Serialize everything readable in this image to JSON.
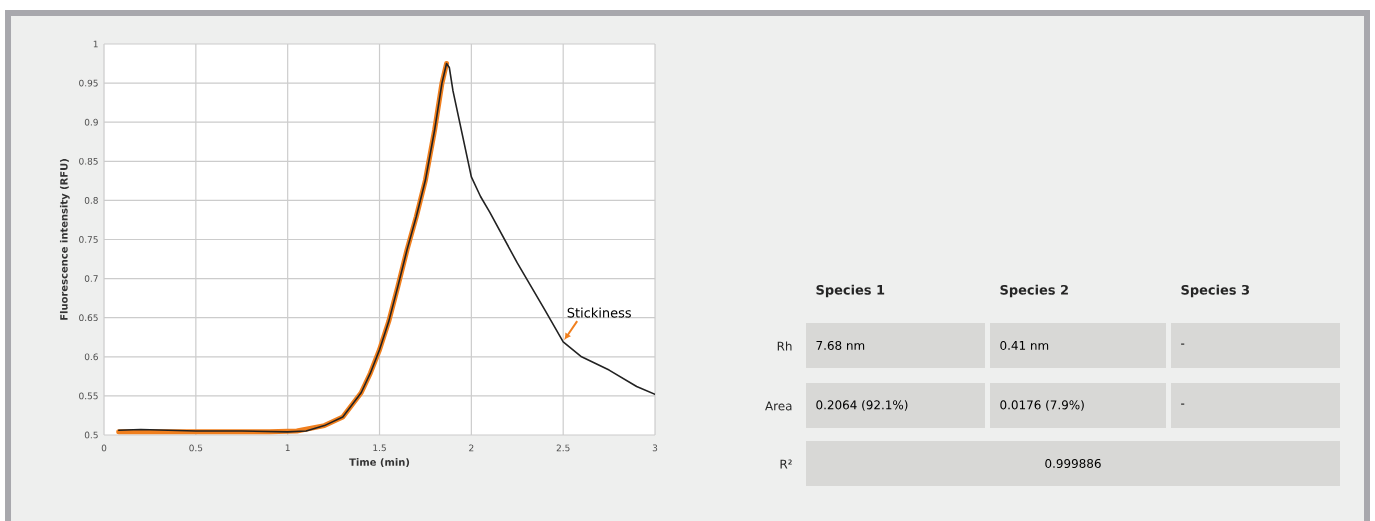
{
  "chart_data": [
    {
      "type": "line",
      "xlabel": "Time (min)",
      "ylabel": "Fluorescence intensity (RFU)",
      "xlim": [
        0,
        3
      ],
      "ylim": [
        0.5,
        1
      ],
      "xticks": [
        0,
        0.5,
        1,
        1.5,
        2,
        2.5,
        3
      ],
      "yticks": [
        0.5,
        0.55,
        0.6,
        0.65,
        0.7,
        0.75,
        0.8,
        0.85,
        0.9,
        0.95,
        1
      ],
      "grid": true,
      "marker": "none",
      "series": [
        {
          "color": "#f07f1e",
          "x": [
            0.08,
            0.3,
            0.6,
            0.9,
            1.05,
            1.2,
            1.3,
            1.4,
            1.45,
            1.5,
            1.55,
            1.6,
            1.65,
            1.7,
            1.75,
            1.8,
            1.84,
            1.865
          ],
          "values": [
            0.504,
            0.504,
            0.504,
            0.504,
            0.505,
            0.512,
            0.523,
            0.554,
            0.579,
            0.609,
            0.645,
            0.69,
            0.737,
            0.779,
            0.826,
            0.89,
            0.95,
            0.975
          ]
        },
        {
          "color": "#222222",
          "x": [
            0.08,
            0.2,
            0.35,
            0.5,
            0.75,
            1.0,
            1.1,
            1.2,
            1.3,
            1.4,
            1.45,
            1.5,
            1.55,
            1.6,
            1.65,
            1.7,
            1.75,
            1.8,
            1.84,
            1.865,
            1.88,
            1.9,
            1.95,
            2.0,
            2.05,
            2.1,
            2.25,
            2.4,
            2.5,
            2.6,
            2.75,
            2.9,
            3.0
          ],
          "values": [
            0.506,
            0.507,
            0.506,
            0.505,
            0.505,
            0.504,
            0.505,
            0.512,
            0.523,
            0.554,
            0.579,
            0.609,
            0.645,
            0.69,
            0.737,
            0.779,
            0.826,
            0.89,
            0.95,
            0.975,
            0.97,
            0.94,
            0.885,
            0.83,
            0.805,
            0.785,
            0.72,
            0.66,
            0.619,
            0.6,
            0.583,
            0.562,
            0.552
          ]
        }
      ],
      "annotations": [
        {
          "text": "Stickiness",
          "x": 2.5,
          "y": 0.62
        }
      ]
    },
    {
      "type": "other",
      "categories": [
        "Species 1",
        "Species 2",
        "Species 3"
      ],
      "y_categories": [
        "Rh",
        "Area",
        "R²"
      ],
      "cell_labels": [
        [
          "7.68 nm",
          "0.41 nm",
          "-"
        ],
        [
          "0.2064 (92.1%)",
          "0.0176 (7.9%)",
          "-"
        ],
        [
          "0.999886",
          null,
          null
        ]
      ]
    }
  ]
}
